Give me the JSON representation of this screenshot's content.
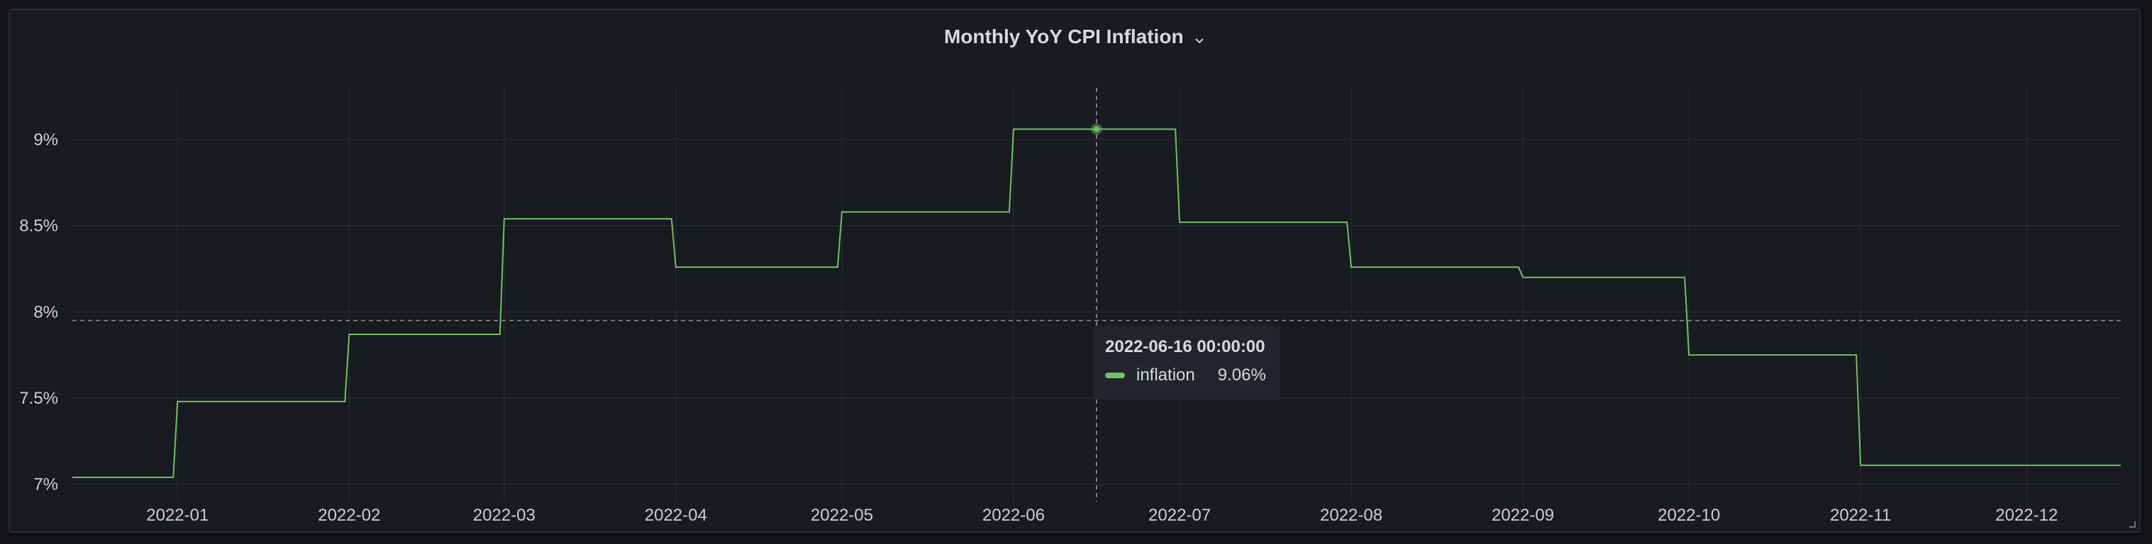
{
  "panel": {
    "title": "Monthly YoY CPI Inflation"
  },
  "colors": {
    "series": "#73bf69",
    "background": "#181b1f",
    "grid": "#2c2f35",
    "text": "#c7d0d9"
  },
  "tooltip": {
    "time": "2022-06-16 00:00:00",
    "series_name": "inflation",
    "value": "9.06%"
  },
  "chart_data": {
    "type": "line",
    "title": "Monthly YoY CPI Inflation",
    "interpolation": "step",
    "grid": true,
    "ylim": [
      6.9,
      9.3
    ],
    "yticks": [
      7,
      7.5,
      8,
      8.5,
      9
    ],
    "ytick_labels": [
      "7%",
      "7.5%",
      "8%",
      "8.5%",
      "9%"
    ],
    "xticks": [
      "2022-01",
      "2022-02",
      "2022-03",
      "2022-04",
      "2022-05",
      "2022-06",
      "2022-07",
      "2022-08",
      "2022-09",
      "2022-10",
      "2022-11",
      "2022-12"
    ],
    "threshold_line": 7.95,
    "crosshair_x": "2022-06-16",
    "series": [
      {
        "name": "inflation",
        "x": [
          "2021-12-13",
          "2022-01-01",
          "2022-02-01",
          "2022-03-01",
          "2022-04-01",
          "2022-05-01",
          "2022-06-01",
          "2022-07-01",
          "2022-08-01",
          "2022-09-01",
          "2022-10-01",
          "2022-11-01",
          "2022-12-18"
        ],
        "values": [
          7.04,
          7.48,
          7.87,
          8.54,
          8.26,
          8.58,
          9.06,
          8.52,
          8.26,
          8.2,
          7.75,
          7.11,
          7.11
        ]
      }
    ]
  }
}
